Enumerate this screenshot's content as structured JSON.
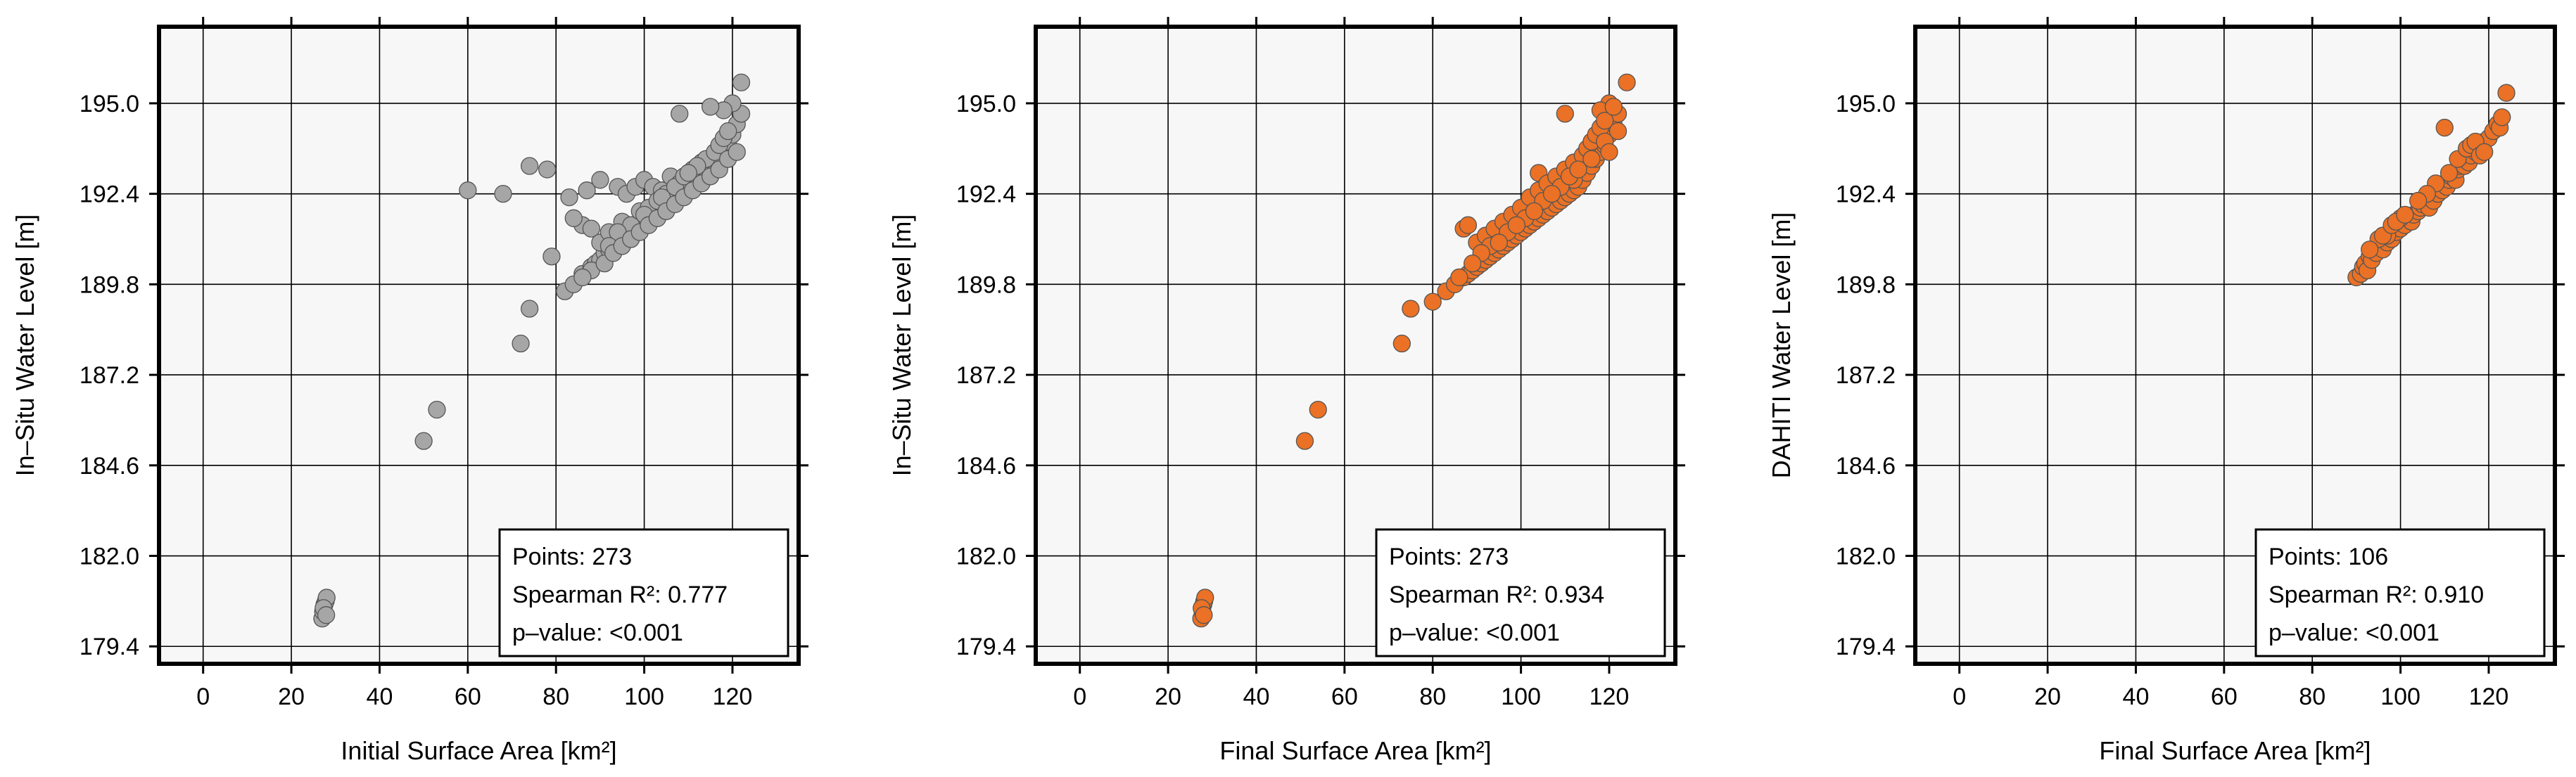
{
  "colors": {
    "gray": "#a6a6a6",
    "orange": "#ea7125",
    "plot_bg": "#f7f7f7"
  },
  "chart_data": [
    {
      "type": "scatter",
      "xlabel": "Initial Surface Area [km²]",
      "ylabel": "In–Situ Water Level [m]",
      "x_ticks": [
        "0",
        "20",
        "40",
        "60",
        "80",
        "100",
        "120"
      ],
      "y_ticks": [
        "179.4",
        "182.0",
        "184.6",
        "187.2",
        "189.8",
        "192.4",
        "195.0"
      ],
      "xlim": [
        -10,
        135
      ],
      "ylim": [
        178.9,
        197.2
      ],
      "grid": true,
      "marker_color": "#a6a6a6",
      "stats": [
        "Points: 273",
        "Spearman R²: 0.777",
        "p–value: <0.001"
      ],
      "points": [
        [
          27,
          180.2
        ],
        [
          27.2,
          180.4
        ],
        [
          27.5,
          180.6
        ],
        [
          27.8,
          180.7
        ],
        [
          28,
          180.8
        ],
        [
          27.3,
          180.5
        ],
        [
          27.9,
          180.3
        ],
        [
          50,
          185.3
        ],
        [
          53,
          186.2
        ],
        [
          72,
          188.1
        ],
        [
          74,
          189.1
        ],
        [
          79,
          190.6
        ],
        [
          82,
          189.6
        ],
        [
          84,
          189.8
        ],
        [
          86,
          190.1
        ],
        [
          88,
          190.3
        ],
        [
          89,
          190.4
        ],
        [
          90,
          190.5
        ],
        [
          91,
          190.7
        ],
        [
          92,
          190.8
        ],
        [
          93,
          190.9
        ],
        [
          94,
          191.0
        ],
        [
          95,
          191.1
        ],
        [
          96,
          191.2
        ],
        [
          97,
          191.3
        ],
        [
          98,
          191.4
        ],
        [
          99,
          191.5
        ],
        [
          100,
          191.6
        ],
        [
          101,
          191.7
        ],
        [
          102,
          191.8
        ],
        [
          103,
          191.9
        ],
        [
          104,
          192.0
        ],
        [
          105,
          192.1
        ],
        [
          106,
          192.2
        ],
        [
          107,
          192.3
        ],
        [
          108,
          192.4
        ],
        [
          109,
          192.5
        ],
        [
          110,
          192.6
        ],
        [
          111,
          192.7
        ],
        [
          112,
          192.8
        ],
        [
          113,
          192.9
        ],
        [
          114,
          193.0
        ],
        [
          115,
          193.1
        ],
        [
          116,
          193.3
        ],
        [
          117,
          193.5
        ],
        [
          118,
          193.7
        ],
        [
          119,
          193.9
        ],
        [
          120,
          194.1
        ],
        [
          121,
          194.4
        ],
        [
          122,
          194.7
        ],
        [
          120,
          195.0
        ],
        [
          118,
          194.8
        ],
        [
          122,
          195.6
        ],
        [
          108,
          194.7
        ],
        [
          115,
          194.9
        ],
        [
          60,
          192.5
        ],
        [
          68,
          192.4
        ],
        [
          74,
          193.2
        ],
        [
          78,
          193.1
        ],
        [
          83,
          192.3
        ],
        [
          87,
          192.5
        ],
        [
          90,
          192.8
        ],
        [
          94,
          192.6
        ],
        [
          96,
          192.4
        ],
        [
          98,
          192.6
        ],
        [
          100,
          192.8
        ],
        [
          102,
          192.6
        ],
        [
          104,
          192.5
        ],
        [
          106,
          192.9
        ],
        [
          108,
          192.7
        ],
        [
          110,
          192.8
        ],
        [
          86,
          191.5
        ],
        [
          88,
          191.4
        ],
        [
          84,
          191.7
        ],
        [
          90,
          191.0
        ],
        [
          92,
          191.3
        ],
        [
          95,
          191.6
        ],
        [
          97,
          191.5
        ],
        [
          99,
          191.9
        ],
        [
          101,
          192.0
        ],
        [
          103,
          192.2
        ],
        [
          105,
          192.4
        ],
        [
          107,
          192.6
        ],
        [
          109,
          192.9
        ],
        [
          111,
          193.1
        ],
        [
          113,
          193.3
        ],
        [
          114,
          193.4
        ],
        [
          116,
          193.6
        ],
        [
          117,
          193.8
        ],
        [
          118,
          194.0
        ],
        [
          119,
          194.2
        ],
        [
          112,
          193.2
        ],
        [
          110,
          193.0
        ],
        [
          104,
          192.3
        ],
        [
          100,
          191.8
        ],
        [
          94,
          191.3
        ],
        [
          92,
          190.9
        ],
        [
          88,
          190.2
        ],
        [
          86,
          190.0
        ],
        [
          91,
          190.4
        ],
        [
          93,
          190.7
        ],
        [
          95,
          190.9
        ],
        [
          97,
          191.1
        ],
        [
          99,
          191.3
        ],
        [
          101,
          191.5
        ],
        [
          103,
          191.7
        ],
        [
          105,
          191.9
        ],
        [
          107,
          192.1
        ],
        [
          109,
          192.3
        ],
        [
          111,
          192.5
        ],
        [
          113,
          192.7
        ],
        [
          115,
          192.9
        ],
        [
          117,
          193.1
        ],
        [
          119,
          193.4
        ],
        [
          121,
          193.6
        ]
      ]
    },
    {
      "type": "scatter",
      "xlabel": "Final Surface Area [km²]",
      "ylabel": "In–Situ Water Level [m]",
      "x_ticks": [
        "0",
        "20",
        "40",
        "60",
        "80",
        "100",
        "120"
      ],
      "y_ticks": [
        "179.4",
        "182.0",
        "184.6",
        "187.2",
        "189.8",
        "192.4",
        "195.0"
      ],
      "xlim": [
        -10,
        135
      ],
      "ylim": [
        178.9,
        197.2
      ],
      "grid": true,
      "marker_color": "#ea7125",
      "stats": [
        "Points: 273",
        "Spearman R²: 0.934",
        "p–value: <0.001"
      ],
      "points": [
        [
          27.5,
          180.2
        ],
        [
          27.8,
          180.4
        ],
        [
          28,
          180.6
        ],
        [
          28.2,
          180.7
        ],
        [
          28.4,
          180.8
        ],
        [
          27.6,
          180.5
        ],
        [
          28.1,
          180.3
        ],
        [
          51,
          185.3
        ],
        [
          54,
          186.2
        ],
        [
          73,
          188.1
        ],
        [
          75,
          189.1
        ],
        [
          80,
          189.3
        ],
        [
          83,
          189.6
        ],
        [
          85,
          189.8
        ],
        [
          87,
          190.0
        ],
        [
          88,
          190.1
        ],
        [
          89,
          190.2
        ],
        [
          90,
          190.3
        ],
        [
          91,
          190.4
        ],
        [
          92,
          190.5
        ],
        [
          93,
          190.6
        ],
        [
          94,
          190.7
        ],
        [
          95,
          190.8
        ],
        [
          96,
          190.9
        ],
        [
          97,
          191.0
        ],
        [
          98,
          191.1
        ],
        [
          99,
          191.2
        ],
        [
          100,
          191.3
        ],
        [
          101,
          191.4
        ],
        [
          102,
          191.5
        ],
        [
          103,
          191.6
        ],
        [
          104,
          191.7
        ],
        [
          105,
          191.8
        ],
        [
          106,
          191.9
        ],
        [
          107,
          192.0
        ],
        [
          108,
          192.1
        ],
        [
          109,
          192.2
        ],
        [
          110,
          192.3
        ],
        [
          111,
          192.4
        ],
        [
          112,
          192.5
        ],
        [
          113,
          192.6
        ],
        [
          114,
          192.8
        ],
        [
          115,
          193.0
        ],
        [
          116,
          193.2
        ],
        [
          117,
          193.4
        ],
        [
          118,
          193.6
        ],
        [
          119,
          193.8
        ],
        [
          120,
          194.1
        ],
        [
          121,
          194.4
        ],
        [
          122,
          194.7
        ],
        [
          120,
          195.0
        ],
        [
          118,
          194.8
        ],
        [
          124,
          195.6
        ],
        [
          110,
          194.7
        ],
        [
          104,
          193.0
        ],
        [
          108,
          192.8
        ],
        [
          87,
          191.4
        ],
        [
          88,
          191.5
        ],
        [
          90,
          191.0
        ],
        [
          92,
          191.2
        ],
        [
          94,
          191.4
        ],
        [
          96,
          191.6
        ],
        [
          98,
          191.8
        ],
        [
          100,
          192.0
        ],
        [
          102,
          192.3
        ],
        [
          104,
          192.5
        ],
        [
          106,
          192.7
        ],
        [
          108,
          192.9
        ],
        [
          110,
          193.1
        ],
        [
          112,
          193.3
        ],
        [
          114,
          193.5
        ],
        [
          115,
          193.7
        ],
        [
          116,
          193.9
        ],
        [
          117,
          194.1
        ],
        [
          118,
          194.3
        ],
        [
          119,
          194.5
        ],
        [
          121,
          194.9
        ],
        [
          112,
          192.8
        ],
        [
          109,
          192.6
        ],
        [
          105,
          192.2
        ],
        [
          101,
          191.7
        ],
        [
          97,
          191.3
        ],
        [
          93,
          190.9
        ],
        [
          91,
          190.7
        ],
        [
          89,
          190.4
        ],
        [
          86,
          190.0
        ],
        [
          95,
          191.0
        ],
        [
          99,
          191.5
        ],
        [
          103,
          191.9
        ],
        [
          107,
          192.4
        ],
        [
          111,
          192.9
        ],
        [
          113,
          193.1
        ],
        [
          116,
          193.4
        ],
        [
          119,
          193.9
        ],
        [
          120,
          193.6
        ],
        [
          122,
          194.2
        ]
      ]
    },
    {
      "type": "scatter",
      "xlabel": "Final Surface Area [km²]",
      "ylabel": "DAHITI Water Level [m]",
      "x_ticks": [
        "0",
        "20",
        "40",
        "60",
        "80",
        "100",
        "120"
      ],
      "y_ticks": [
        "179.4",
        "182.0",
        "184.6",
        "187.2",
        "189.8",
        "192.4",
        "195.0"
      ],
      "xlim": [
        -10,
        135
      ],
      "ylim": [
        178.9,
        197.2
      ],
      "grid": true,
      "marker_color": "#ea7125",
      "stats": [
        "Points: 106",
        "Spearman R²: 0.910",
        "p–value: <0.001"
      ],
      "points": [
        [
          90,
          190.0
        ],
        [
          91,
          190.1
        ],
        [
          91.5,
          190.3
        ],
        [
          92,
          190.4
        ],
        [
          92.5,
          190.2
        ],
        [
          93,
          190.6
        ],
        [
          93.5,
          190.5
        ],
        [
          94,
          190.8
        ],
        [
          94.5,
          190.7
        ],
        [
          95,
          190.9
        ],
        [
          96,
          190.8
        ],
        [
          97,
          191.0
        ],
        [
          98,
          191.1
        ],
        [
          99,
          191.3
        ],
        [
          100,
          191.4
        ],
        [
          100.5,
          191.6
        ],
        [
          101,
          191.5
        ],
        [
          102,
          191.7
        ],
        [
          102.5,
          191.6
        ],
        [
          103,
          191.8
        ],
        [
          104,
          191.9
        ],
        [
          104.5,
          192.0
        ],
        [
          105,
          192.1
        ],
        [
          106,
          192.2
        ],
        [
          106.5,
          192.0
        ],
        [
          107,
          192.3
        ],
        [
          107.5,
          192.2
        ],
        [
          108,
          192.5
        ],
        [
          108.5,
          192.4
        ],
        [
          109,
          192.6
        ],
        [
          109.5,
          192.5
        ],
        [
          110,
          192.7
        ],
        [
          110.5,
          192.6
        ],
        [
          111,
          192.8
        ],
        [
          111.5,
          192.9
        ],
        [
          112,
          193.0
        ],
        [
          112.5,
          192.8
        ],
        [
          113,
          193.1
        ],
        [
          113.5,
          193.2
        ],
        [
          114,
          193.3
        ],
        [
          114.5,
          193.2
        ],
        [
          115,
          193.4
        ],
        [
          115.5,
          193.3
        ],
        [
          116,
          193.5
        ],
        [
          117,
          193.6
        ],
        [
          118,
          193.7
        ],
        [
          119,
          193.9
        ],
        [
          120,
          194.0
        ],
        [
          121,
          194.2
        ],
        [
          122,
          194.4
        ],
        [
          122.5,
          194.3
        ],
        [
          123,
          194.6
        ],
        [
          124,
          195.3
        ],
        [
          110,
          194.3
        ],
        [
          108,
          192.7
        ],
        [
          106,
          192.4
        ],
        [
          104,
          192.2
        ],
        [
          100,
          191.7
        ],
        [
          97,
          191.2
        ],
        [
          95,
          191.1
        ],
        [
          93,
          190.8
        ],
        [
          111,
          193.0
        ],
        [
          113,
          193.4
        ],
        [
          115,
          193.7
        ],
        [
          116,
          193.8
        ],
        [
          117,
          193.9
        ],
        [
          118,
          193.5
        ],
        [
          119,
          193.6
        ],
        [
          96,
          191.2
        ],
        [
          98,
          191.5
        ],
        [
          99,
          191.6
        ],
        [
          101,
          191.8
        ]
      ]
    }
  ]
}
